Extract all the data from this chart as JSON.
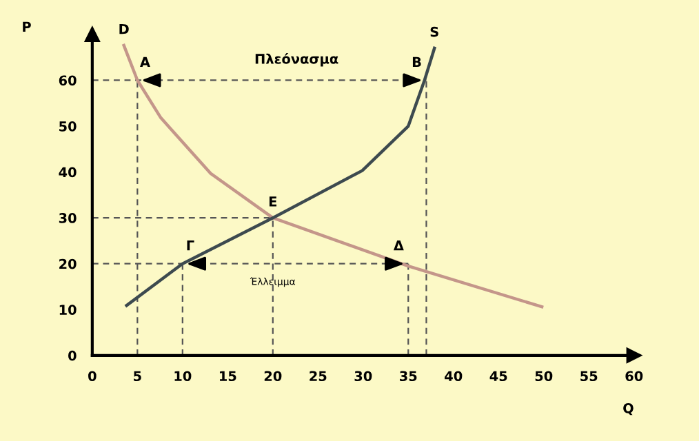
{
  "chart_data": {
    "type": "line",
    "xlabel": "Q",
    "ylabel": "P",
    "xlim": [
      0,
      60
    ],
    "ylim": [
      0,
      70
    ],
    "xticks": [
      0,
      5,
      10,
      15,
      20,
      25,
      30,
      35,
      40,
      45,
      50,
      55,
      60
    ],
    "yticks": [
      0,
      10,
      20,
      30,
      40,
      50,
      60
    ],
    "grid": false,
    "marker": "none",
    "series": [
      {
        "color": "#c4968a",
        "x": [
          3.5,
          5,
          7.6,
          13.1,
          20,
          35,
          49.8
        ],
        "values": [
          67.6,
          60,
          51.8,
          39.7,
          30,
          19.5,
          10.6
        ]
      },
      {
        "color": "#3d4a4f",
        "x": [
          3.8,
          10,
          20,
          29.9,
          35,
          36.8,
          37.9
        ],
        "values": [
          10.9,
          20,
          30,
          40.3,
          50,
          60,
          67
        ]
      },
      {
        "color": "#555555",
        "line_style": "dashed",
        "x": [
          0,
          37
        ],
        "values": [
          60,
          60
        ]
      },
      {
        "color": "#555555",
        "line_style": "dashed",
        "x": [
          0,
          20
        ],
        "values": [
          30,
          30
        ]
      },
      {
        "color": "#555555",
        "line_style": "dashed",
        "x": [
          0,
          35
        ],
        "values": [
          20,
          20
        ]
      },
      {
        "color": "#555555",
        "line_style": "dashed",
        "x": [
          5,
          5
        ],
        "values": [
          0,
          60
        ]
      },
      {
        "color": "#555555",
        "line_style": "dashed",
        "x": [
          10,
          10
        ],
        "values": [
          0,
          20
        ]
      },
      {
        "color": "#555555",
        "line_style": "dashed",
        "x": [
          20,
          20
        ],
        "values": [
          0,
          30
        ]
      },
      {
        "color": "#555555",
        "line_style": "dashed",
        "x": [
          35,
          35
        ],
        "values": [
          0,
          20
        ]
      },
      {
        "color": "#555555",
        "line_style": "dashed",
        "x": [
          37,
          37
        ],
        "values": [
          0,
          60
        ]
      }
    ],
    "annotations": [
      {
        "text": "A",
        "x": 5,
        "y": 60
      },
      {
        "text": "B",
        "x": 37,
        "y": 60
      },
      {
        "text": "Γ",
        "x": 10,
        "y": 20
      },
      {
        "text": "Δ",
        "x": 35,
        "y": 20
      },
      {
        "text": "E",
        "x": 20,
        "y": 30
      },
      {
        "text": "D",
        "x": 3.5,
        "y": 67.6
      },
      {
        "text": "S",
        "x": 37.9,
        "y": 67
      },
      "Πλεόνασμα",
      {
        "text": "Έλλειμμα",
        "x": 20,
        "y": 16
      }
    ]
  }
}
